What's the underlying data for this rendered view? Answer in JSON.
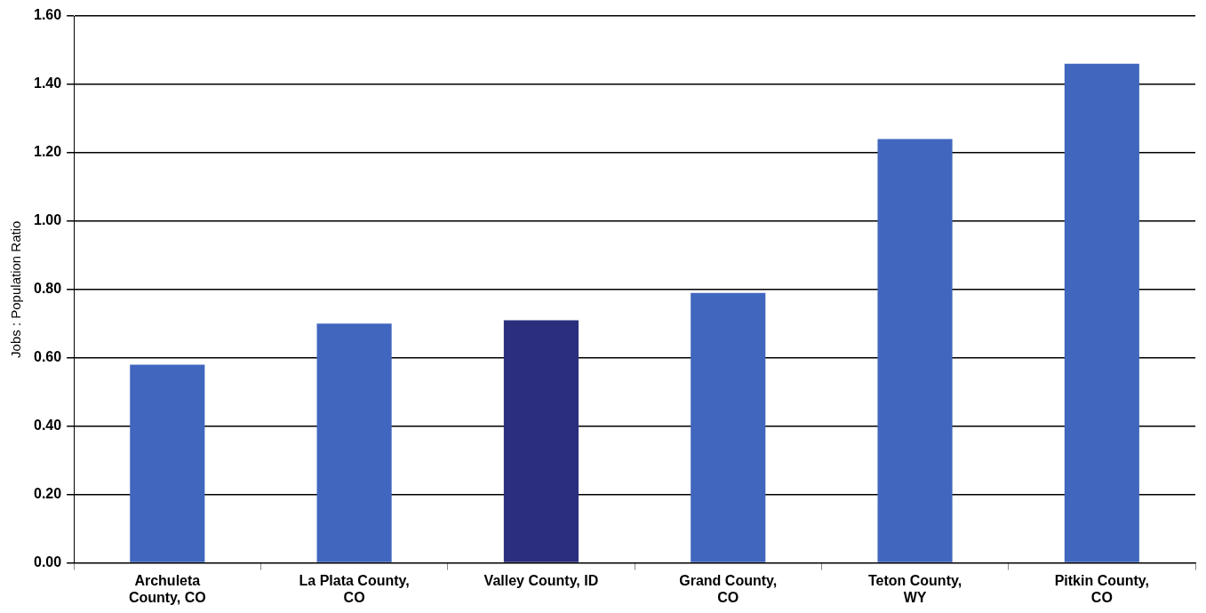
{
  "chart_data": {
    "type": "bar",
    "ylabel": "Jobs : Population Ratio",
    "categories": [
      "Archuleta\nCounty, CO",
      "La Plata County,\nCO",
      "Valley County, ID",
      "Grand County,\nCO",
      "Teton County,\nWY",
      "Pitkin County,\nCO"
    ],
    "values": [
      0.58,
      0.7,
      0.71,
      0.79,
      1.24,
      1.46
    ],
    "colors": [
      "#4166be",
      "#4166be",
      "#2b2e7c",
      "#4166be",
      "#4166be",
      "#4166be"
    ],
    "ylim": [
      0,
      1.6
    ],
    "yticks": [
      {
        "value": 0,
        "label": "0.00"
      },
      {
        "value": 0.2,
        "label": "0.20"
      },
      {
        "value": 0.4,
        "label": "0.40"
      },
      {
        "value": 0.6,
        "label": "0.60"
      },
      {
        "value": 0.8,
        "label": "0.80"
      },
      {
        "value": 1.0,
        "label": "1.00"
      },
      {
        "value": 1.2,
        "label": "1.20"
      },
      {
        "value": 1.4,
        "label": "1.40"
      },
      {
        "value": 1.6,
        "label": "1.60"
      }
    ],
    "grid": "y",
    "legend": false
  }
}
